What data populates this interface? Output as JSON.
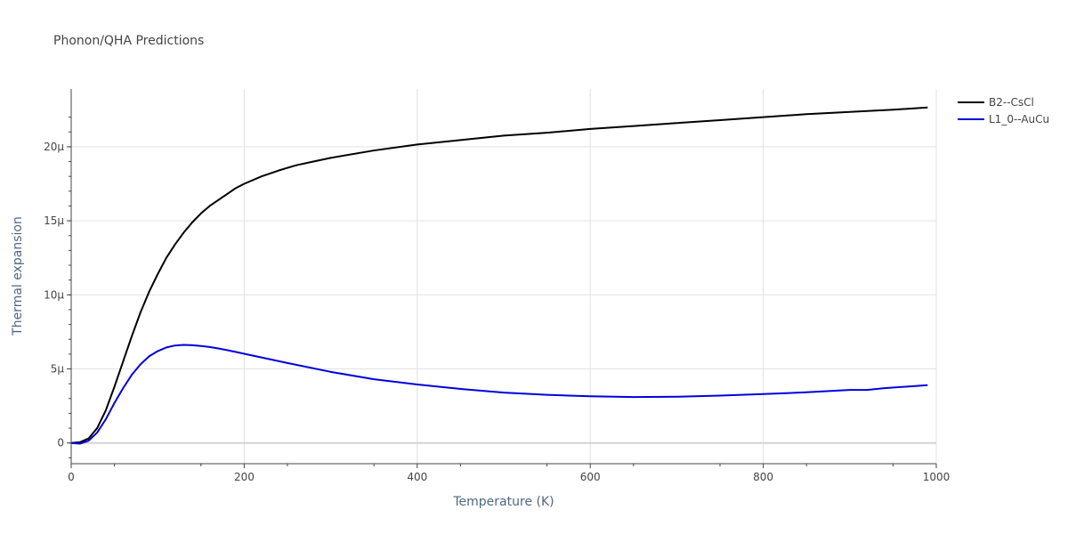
{
  "chart_data": {
    "type": "line",
    "title": "Phonon/QHA Predictions",
    "xlabel": "Temperature (K)",
    "ylabel": "Thermal expansion",
    "xlim": [
      0,
      1000
    ],
    "ylim": [
      -1.4e-06,
      2.39e-05
    ],
    "x_ticks": [
      0,
      200,
      400,
      600,
      800,
      1000
    ],
    "x_tick_labels": [
      "0",
      "200",
      "400",
      "600",
      "800",
      "1000"
    ],
    "y_ticks": [
      0,
      5e-06,
      1e-05,
      1.5e-05,
      2e-05
    ],
    "y_tick_labels": [
      "0",
      "5μ",
      "10μ",
      "15μ",
      "20μ"
    ],
    "grid": true,
    "legend_position": "top-right",
    "series": [
      {
        "name": "B2--CsCl",
        "color": "#000000",
        "x": [
          0,
          10,
          20,
          30,
          40,
          50,
          60,
          70,
          80,
          90,
          100,
          110,
          120,
          130,
          140,
          150,
          160,
          170,
          180,
          190,
          200,
          220,
          240,
          260,
          280,
          300,
          350,
          400,
          450,
          500,
          550,
          600,
          650,
          700,
          750,
          800,
          850,
          900,
          950,
          990
        ],
        "y": [
          0,
          5e-08,
          3e-07,
          1e-06,
          2.2e-06,
          3.8e-06,
          5.5e-06,
          7.2e-06,
          8.8e-06,
          1.02e-05,
          1.14e-05,
          1.25e-05,
          1.34e-05,
          1.42e-05,
          1.49e-05,
          1.55e-05,
          1.6e-05,
          1.64e-05,
          1.68e-05,
          1.72e-05,
          1.75e-05,
          1.8e-05,
          1.84e-05,
          1.875e-05,
          1.9e-05,
          1.925e-05,
          1.975e-05,
          2.015e-05,
          2.045e-05,
          2.075e-05,
          2.095e-05,
          2.12e-05,
          2.14e-05,
          2.16e-05,
          2.18e-05,
          2.2e-05,
          2.22e-05,
          2.235e-05,
          2.25e-05,
          2.265e-05
        ]
      },
      {
        "name": "L1_0--AuCu",
        "color": "#0000dd",
        "x": [
          0,
          10,
          20,
          30,
          40,
          50,
          60,
          70,
          80,
          90,
          100,
          110,
          120,
          130,
          140,
          150,
          160,
          170,
          180,
          190,
          200,
          250,
          300,
          350,
          400,
          450,
          500,
          550,
          600,
          650,
          700,
          750,
          800,
          850,
          900,
          920,
          940,
          990
        ],
        "y": [
          0,
          -5e-08,
          1.5e-07,
          7e-07,
          1.6e-06,
          2.7e-06,
          3.7e-06,
          4.6e-06,
          5.3e-06,
          5.85e-06,
          6.2e-06,
          6.45e-06,
          6.58e-06,
          6.62e-06,
          6.6e-06,
          6.55e-06,
          6.48e-06,
          6.38e-06,
          6.27e-06,
          6.15e-06,
          6.02e-06,
          5.4e-06,
          4.8e-06,
          4.3e-06,
          3.95e-06,
          3.65e-06,
          3.4e-06,
          3.25e-06,
          3.15e-06,
          3.1e-06,
          3.12e-06,
          3.2e-06,
          3.3e-06,
          3.42e-06,
          3.58e-06,
          3.58e-06,
          3.7e-06,
          3.9e-06
        ]
      }
    ]
  }
}
